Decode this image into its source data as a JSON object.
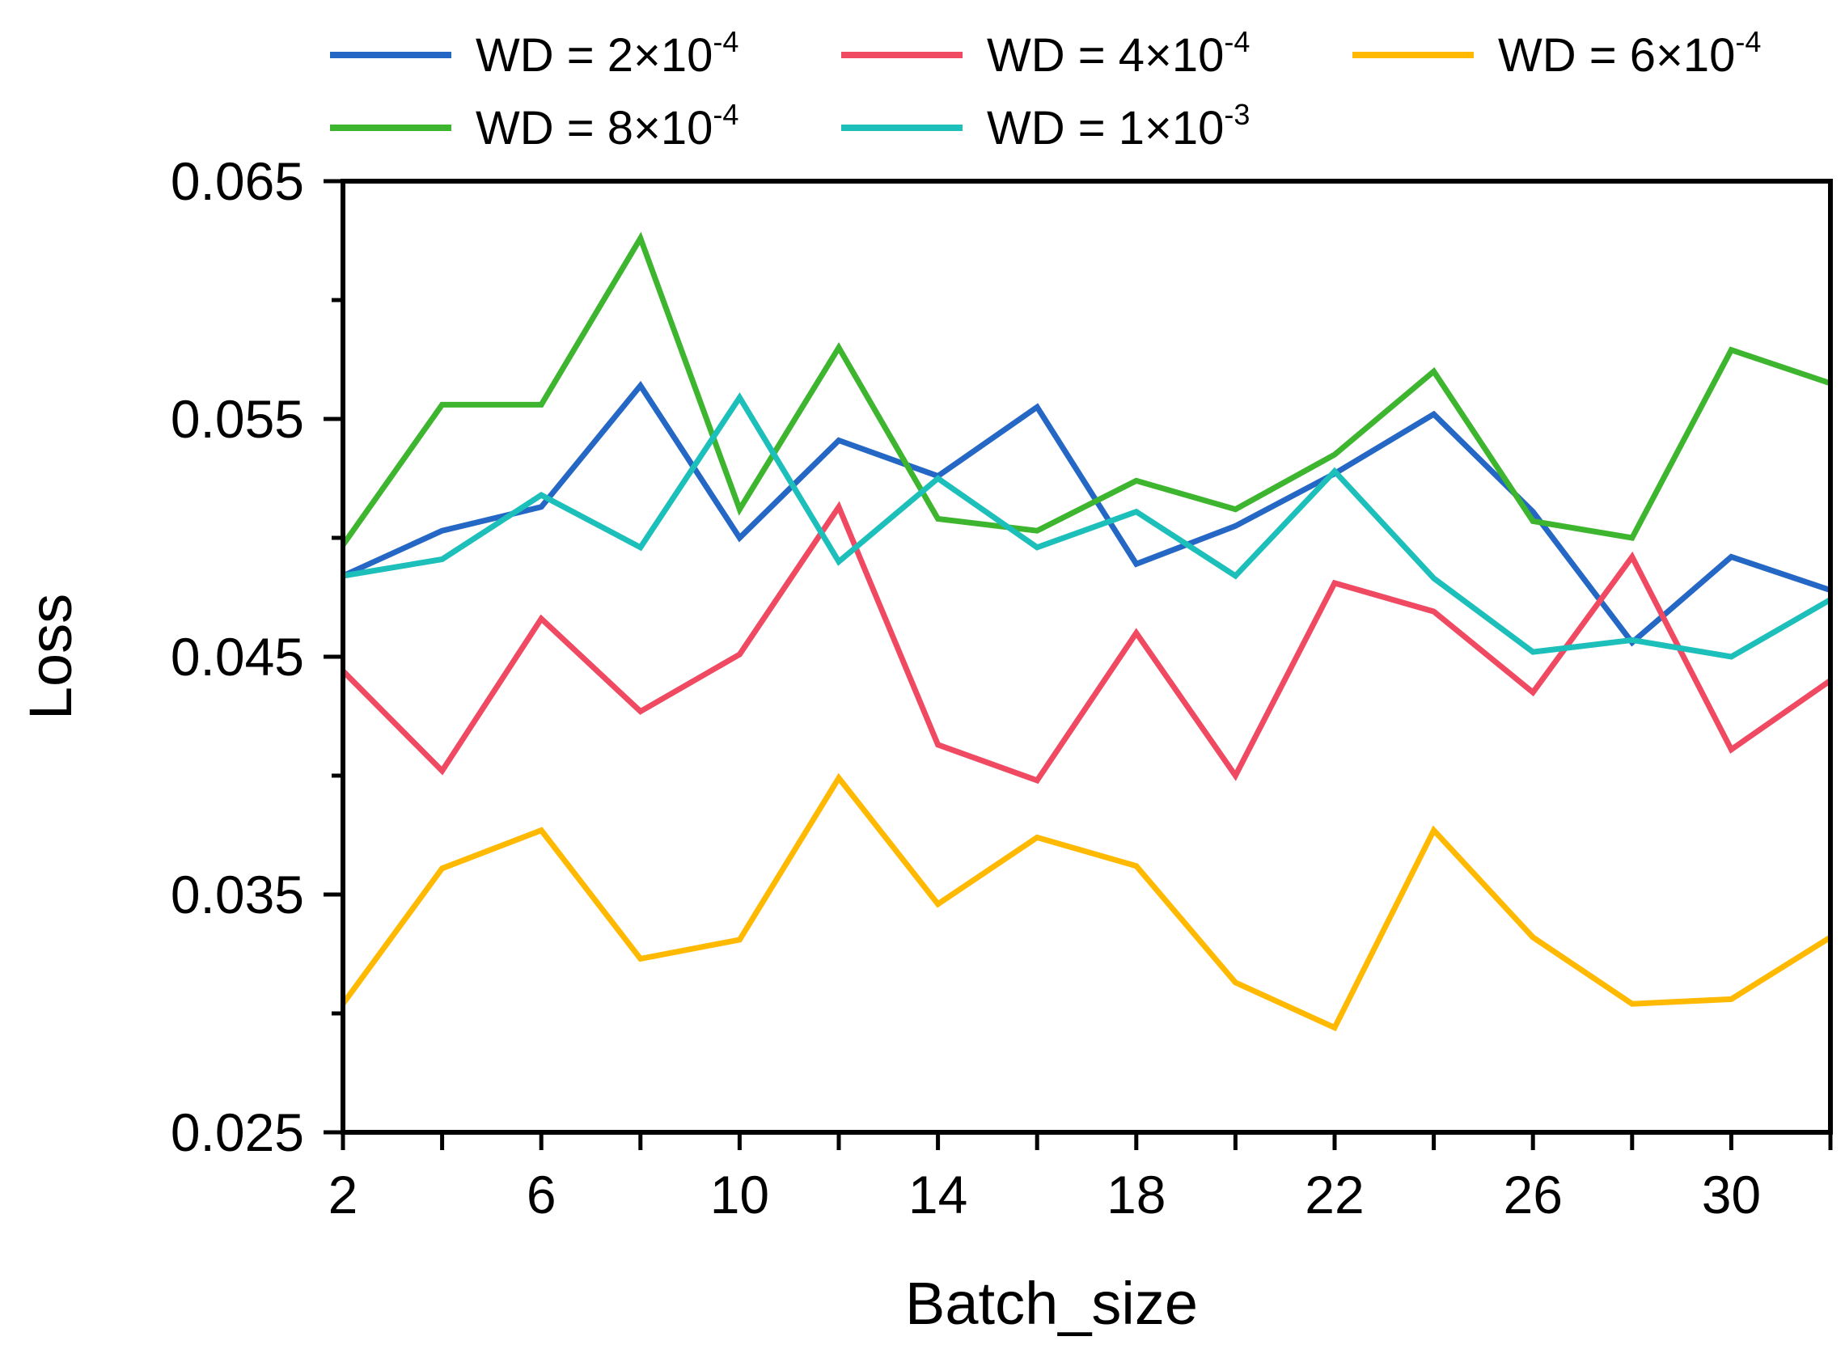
{
  "chart_data": {
    "type": "line",
    "title": "",
    "xlabel": "Batch_size",
    "ylabel": "Loss",
    "xlim": [
      2,
      32
    ],
    "ylim": [
      0.025,
      0.065
    ],
    "x": [
      2,
      4,
      6,
      8,
      10,
      12,
      14,
      16,
      18,
      20,
      22,
      24,
      26,
      28,
      30,
      32
    ],
    "xticks": [
      2,
      6,
      10,
      14,
      18,
      22,
      26,
      30
    ],
    "xtick_labels": [
      "2",
      "6",
      "10",
      "14",
      "18",
      "22",
      "26",
      "30"
    ],
    "yticks": [
      0.025,
      0.035,
      0.045,
      0.055,
      0.065
    ],
    "ytick_labels": [
      "0.025",
      "0.035",
      "0.045",
      "0.055",
      "0.065"
    ],
    "grid": false,
    "legend_position": "top",
    "series": [
      {
        "name": "WD = 2×10-4",
        "label_main": "WD = 2×10",
        "label_exp": "-4",
        "color": "#2467c4",
        "values": [
          0.0484,
          0.0503,
          0.0513,
          0.0564,
          0.05,
          0.0541,
          0.0526,
          0.0555,
          0.0489,
          0.0505,
          0.0527,
          0.0552,
          0.0511,
          0.0456,
          0.0492,
          0.0478
        ]
      },
      {
        "name": "WD = 4×10-4",
        "label_main": "WD = 4×10",
        "label_exp": "-4",
        "color": "#f04a63",
        "values": [
          0.0444,
          0.0402,
          0.0466,
          0.0427,
          0.0451,
          0.0513,
          0.0413,
          0.0398,
          0.046,
          0.04,
          0.0481,
          0.0469,
          0.0435,
          0.0492,
          0.0411,
          0.044
        ]
      },
      {
        "name": "WD = 6×10-4",
        "label_main": "WD = 6×10",
        "label_exp": "-4",
        "color": "#ffb900",
        "values": [
          0.0304,
          0.0361,
          0.0377,
          0.0323,
          0.0331,
          0.0399,
          0.0346,
          0.0374,
          0.0362,
          0.0313,
          0.0294,
          0.0377,
          0.0332,
          0.0304,
          0.0306,
          0.0332
        ]
      },
      {
        "name": "WD = 8×10-4",
        "label_main": "WD = 8×10",
        "label_exp": "-4",
        "color": "#3db52e",
        "values": [
          0.0497,
          0.0556,
          0.0556,
          0.0626,
          0.0512,
          0.058,
          0.0508,
          0.0503,
          0.0524,
          0.0512,
          0.0535,
          0.057,
          0.0507,
          0.05,
          0.0579,
          0.0565
        ]
      },
      {
        "name": "WD = 1×10-3",
        "label_main": "WD = 1×10",
        "label_exp": "-3",
        "color": "#1dbfba",
        "values": [
          0.0484,
          0.0491,
          0.0518,
          0.0496,
          0.0559,
          0.049,
          0.0525,
          0.0496,
          0.0511,
          0.0484,
          0.0528,
          0.0483,
          0.0452,
          0.0457,
          0.045,
          0.0474
        ]
      }
    ]
  }
}
